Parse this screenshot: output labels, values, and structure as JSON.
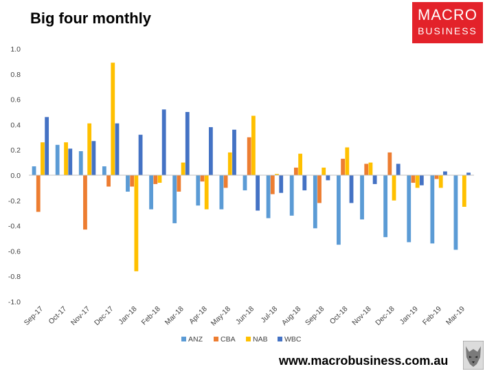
{
  "header": {
    "title": "Big four monthly",
    "logo_line1": "MACRO",
    "logo_line2": "BUSINESS",
    "logo_color": "#e3222a"
  },
  "footer": {
    "website": "www.macrobusiness.com.au"
  },
  "chart_data": {
    "type": "bar",
    "title": "Big four monthly",
    "xlabel": "",
    "ylabel": "",
    "ylim": [
      -1.0,
      1.0
    ],
    "yticks": [
      "1.0",
      "0.8",
      "0.6",
      "0.4",
      "0.2",
      "0.0",
      "-0.2",
      "-0.4",
      "-0.6",
      "-0.8",
      "-1.0"
    ],
    "ytick_values": [
      1.0,
      0.8,
      0.6,
      0.4,
      0.2,
      0.0,
      -0.2,
      -0.4,
      -0.6,
      -0.8,
      -1.0
    ],
    "grid": false,
    "legend": "bottom",
    "categories": [
      "Sep-17",
      "Oct-17",
      "Nov-17",
      "Dec-17",
      "Jan-18",
      "Feb-18",
      "Mar-18",
      "Apr-18",
      "May-18",
      "Jun-18",
      "Jul-18",
      "Aug-18",
      "Sep-18",
      "Oct-18",
      "Nov-18",
      "Dec-18",
      "Jan-19",
      "Feb-19",
      "Mar-19"
    ],
    "series": [
      {
        "name": "ANZ",
        "color": "#5b9bd5",
        "values": [
          0.07,
          0.24,
          0.19,
          0.07,
          -0.13,
          -0.27,
          -0.38,
          -0.24,
          -0.27,
          -0.12,
          -0.34,
          -0.32,
          -0.42,
          -0.55,
          -0.35,
          -0.49,
          -0.53,
          -0.54,
          -0.59
        ]
      },
      {
        "name": "CBA",
        "color": "#ed7d31",
        "values": [
          -0.29,
          0.0,
          -0.43,
          -0.09,
          -0.09,
          -0.07,
          -0.13,
          -0.05,
          -0.1,
          0.3,
          -0.15,
          0.06,
          -0.22,
          0.13,
          0.09,
          0.18,
          -0.06,
          -0.03,
          0.0
        ]
      },
      {
        "name": "NAB",
        "color": "#ffc000",
        "values": [
          0.26,
          0.26,
          0.41,
          0.89,
          -0.76,
          -0.06,
          0.1,
          -0.27,
          0.18,
          0.47,
          0.01,
          0.17,
          0.06,
          0.22,
          0.1,
          -0.2,
          -0.1,
          -0.1,
          -0.25
        ]
      },
      {
        "name": "WBC",
        "color": "#4472c4",
        "values": [
          0.46,
          0.21,
          0.27,
          0.41,
          0.32,
          0.52,
          0.5,
          0.38,
          0.36,
          -0.28,
          -0.14,
          -0.12,
          -0.04,
          -0.22,
          -0.07,
          0.09,
          -0.08,
          0.03,
          0.02
        ]
      }
    ]
  }
}
